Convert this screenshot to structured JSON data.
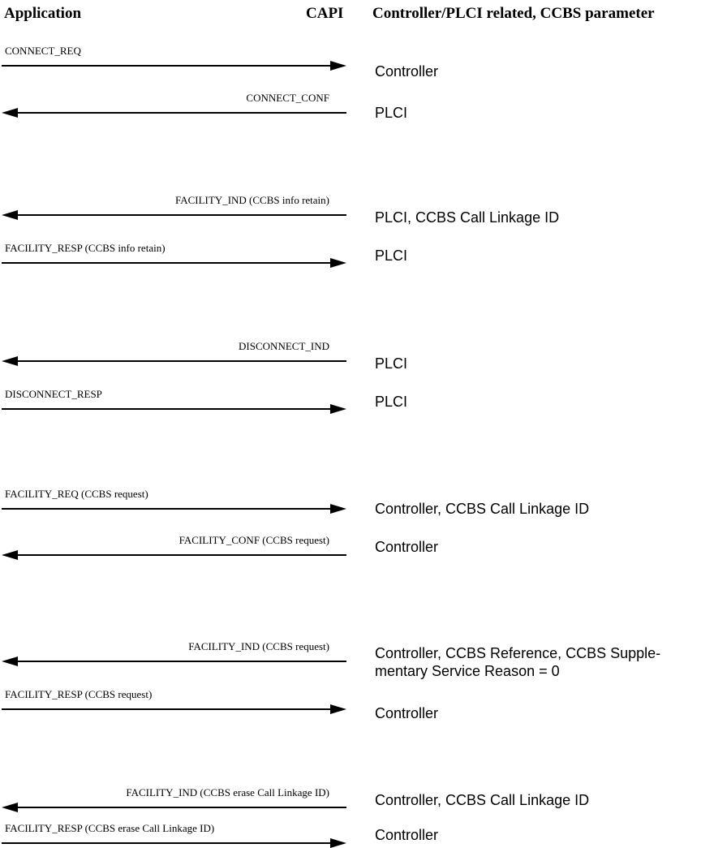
{
  "header": {
    "application": "Application",
    "capi": "CAPI",
    "parameter": "Controller/PLCI related, CCBS parameter"
  },
  "messages": [
    {
      "label": "CONNECT_REQ",
      "direction": "right"
    },
    {
      "label": "CONNECT_CONF",
      "direction": "left"
    },
    {
      "label": "FACILITY_IND (CCBS info retain)",
      "direction": "left"
    },
    {
      "label": "FACILITY_RESP (CCBS info retain)",
      "direction": "right"
    },
    {
      "label": "DISCONNECT_IND",
      "direction": "left"
    },
    {
      "label": "DISCONNECT_RESP",
      "direction": "right"
    },
    {
      "label": "FACILITY_REQ (CCBS request)",
      "direction": "right"
    },
    {
      "label": "FACILITY_CONF (CCBS request)",
      "direction": "left"
    },
    {
      "label": "FACILITY_IND (CCBS request)",
      "direction": "left"
    },
    {
      "label": "FACILITY_RESP (CCBS request)",
      "direction": "right"
    },
    {
      "label": "FACILITY_IND (CCBS erase Call Linkage ID)",
      "direction": "left"
    },
    {
      "label": "FACILITY_RESP (CCBS erase Call Linkage ID)",
      "direction": "right"
    }
  ],
  "parameters": [
    {
      "text": "Controller"
    },
    {
      "text": "PLCI"
    },
    {
      "text": "PLCI, CCBS Call Linkage ID"
    },
    {
      "text": "PLCI"
    },
    {
      "text": "PLCI"
    },
    {
      "text": "PLCI"
    },
    {
      "text": "Controller, CCBS Call Linkage ID"
    },
    {
      "text": "Controller"
    },
    {
      "text": "Controller, CCBS Reference, CCBS Supple-",
      "text2": "mentary Service Reason = 0"
    },
    {
      "text": "Controller"
    },
    {
      "text": "Controller, CCBS Call Linkage ID"
    },
    {
      "text": "Controller"
    }
  ]
}
